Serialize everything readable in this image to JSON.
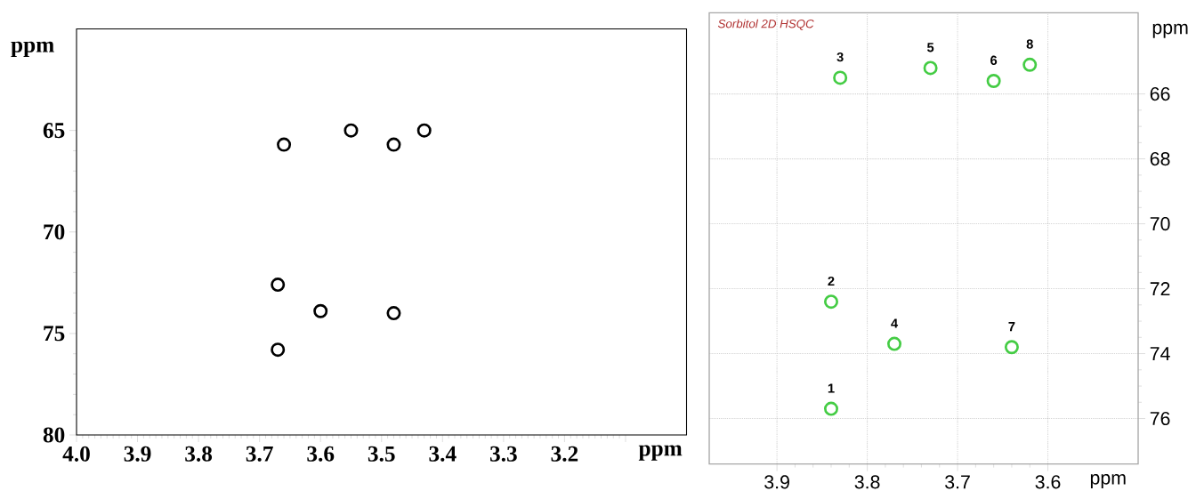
{
  "chart_data": [
    {
      "type": "scatter",
      "xlabel": "ppm",
      "ylabel": "ppm",
      "x": [
        3.66,
        3.55,
        3.48,
        3.43,
        3.67,
        3.6,
        3.48,
        3.67
      ],
      "values": [
        65.7,
        65.0,
        65.7,
        65.0,
        72.6,
        73.9,
        74.0,
        75.8
      ],
      "color": "#000000",
      "marker": "circle",
      "xlim": [
        4.0,
        3.0
      ],
      "ylim": [
        80,
        60
      ],
      "xticks": [
        {
          "value": 4.0,
          "label": "4.0"
        },
        3.9,
        3.8,
        3.7,
        3.6,
        3.5,
        3.4,
        3.3,
        3.2,
        {
          "value": 3.1,
          "label": null
        }
      ],
      "yticks": [
        65,
        70,
        75,
        80
      ]
    },
    {
      "type": "scatter",
      "title": "Sorbitol 2D HSQC",
      "xlabel": "ppm",
      "ylabel": "ppm",
      "x": [
        3.84,
        3.84,
        3.83,
        3.77,
        3.73,
        3.66,
        3.64,
        3.62
      ],
      "values": [
        75.7,
        72.4,
        65.5,
        73.7,
        65.2,
        65.6,
        73.8,
        65.1
      ],
      "annotations": [
        {
          "text": "1",
          "x": 3.84,
          "y": 75.7
        },
        {
          "text": "2",
          "x": 3.84,
          "y": 72.4
        },
        {
          "text": "3",
          "x": 3.83,
          "y": 65.5
        },
        {
          "text": "4",
          "x": 3.77,
          "y": 73.7
        },
        {
          "text": "5",
          "x": 3.73,
          "y": 65.2
        },
        {
          "text": "6",
          "x": 3.66,
          "y": 65.6
        },
        {
          "text": "7",
          "x": 3.64,
          "y": 73.8
        },
        {
          "text": "8",
          "x": 3.62,
          "y": 65.1
        }
      ],
      "color": "#44cc44",
      "marker": "circle",
      "grid": true,
      "xlim": [
        3.975,
        3.5
      ],
      "ylim": [
        77.4,
        63.5
      ],
      "xticks": [
        3.9,
        3.8,
        3.7,
        3.6
      ],
      "yticks": [
        66,
        68,
        70,
        72,
        74,
        76
      ]
    }
  ]
}
